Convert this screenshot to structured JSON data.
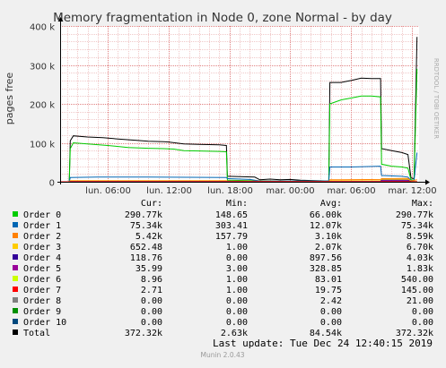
{
  "chart_data": {
    "type": "line",
    "title": "Memory fragmentation in Node 0, zone Normal - by day",
    "ylabel": "pages free",
    "watermark": "RRDTOOL / TOBI OETIKER",
    "ylim": [
      0,
      400000
    ],
    "y_ticks": [
      {
        "value": 0,
        "label": "0"
      },
      {
        "value": 100000,
        "label": "100 k"
      },
      {
        "value": 200000,
        "label": "200 k"
      },
      {
        "value": 300000,
        "label": "300 k"
      },
      {
        "value": 400000,
        "label": "400 k"
      }
    ],
    "x_ticks": [
      {
        "t": 6,
        "label": "lun. 06:00"
      },
      {
        "t": 12,
        "label": "lun. 12:00"
      },
      {
        "t": 18,
        "label": "lun. 18:00"
      },
      {
        "t": 24,
        "label": "mar. 00:00"
      },
      {
        "t": 30,
        "label": "mar. 06:00"
      },
      {
        "t": 36,
        "label": "mar. 12:00"
      }
    ],
    "xlim": [
      1.3,
      36.7
    ],
    "columns": [
      "",
      "Cur:",
      "Min:",
      "Avg:",
      "Max:"
    ],
    "legend": [
      {
        "name": "Order 0",
        "color": "#00cc00",
        "cur": "290.77k",
        "min": "148.65",
        "avg": "66.00k",
        "max": "290.77k"
      },
      {
        "name": "Order 1",
        "color": "#0066b3",
        "cur": "75.34k",
        "min": "303.41",
        "avg": "12.07k",
        "max": "75.34k"
      },
      {
        "name": "Order 2",
        "color": "#ff8000",
        "cur": "5.42k",
        "min": "157.79",
        "avg": "3.10k",
        "max": "8.59k"
      },
      {
        "name": "Order 3",
        "color": "#ffcc00",
        "cur": "652.48",
        "min": "1.00",
        "avg": "2.07k",
        "max": "6.70k"
      },
      {
        "name": "Order 4",
        "color": "#330099",
        "cur": "118.76",
        "min": "0.00",
        "avg": "897.56",
        "max": "4.03k"
      },
      {
        "name": "Order 5",
        "color": "#990099",
        "cur": "35.99",
        "min": "3.00",
        "avg": "328.85",
        "max": "1.83k"
      },
      {
        "name": "Order 6",
        "color": "#ccff00",
        "cur": "8.96",
        "min": "1.00",
        "avg": "83.01",
        "max": "540.00"
      },
      {
        "name": "Order 7",
        "color": "#ff0000",
        "cur": "2.71",
        "min": "1.00",
        "avg": "19.75",
        "max": "145.00"
      },
      {
        "name": "Order 8",
        "color": "#808080",
        "cur": "0.00",
        "min": "0.00",
        "avg": "2.42",
        "max": "21.00"
      },
      {
        "name": "Order 9",
        "color": "#008f00",
        "cur": "0.00",
        "min": "0.00",
        "avg": "0.00",
        "max": "0.00"
      },
      {
        "name": "Order 10",
        "color": "#00487d",
        "cur": "0.00",
        "min": "0.00",
        "avg": "0.00",
        "max": "0.00"
      },
      {
        "name": "Total",
        "color": "#000000",
        "cur": "372.32k",
        "min": "2.63k",
        "avg": "84.54k",
        "max": "372.32k"
      }
    ],
    "series": [
      {
        "name": "Total",
        "color": "#000000",
        "points": [
          [
            1.3,
            0
          ],
          [
            2.2,
            0
          ],
          [
            2.3,
            105000
          ],
          [
            2.6,
            118000
          ],
          [
            4.0,
            115000
          ],
          [
            5.5,
            113000
          ],
          [
            7.0,
            110000
          ],
          [
            9.0,
            106000
          ],
          [
            10.0,
            104000
          ],
          [
            11.5,
            103000
          ],
          [
            12.0,
            102000
          ],
          [
            13.5,
            97000
          ],
          [
            15.0,
            96000
          ],
          [
            17.0,
            95000
          ],
          [
            17.7,
            93000
          ],
          [
            17.8,
            14000
          ],
          [
            19.0,
            13000
          ],
          [
            20.5,
            12000
          ],
          [
            21.0,
            5000
          ],
          [
            22.0,
            7000
          ],
          [
            23.0,
            5000
          ],
          [
            24.0,
            6000
          ],
          [
            25.0,
            4000
          ],
          [
            26.5,
            3000
          ],
          [
            27.8,
            2000
          ],
          [
            27.9,
            255000
          ],
          [
            29.0,
            255000
          ],
          [
            30.0,
            260000
          ],
          [
            31.0,
            266000
          ],
          [
            32.0,
            265000
          ],
          [
            32.9,
            265000
          ],
          [
            33.0,
            85000
          ],
          [
            34.0,
            80000
          ],
          [
            35.0,
            75000
          ],
          [
            35.6,
            70000
          ],
          [
            35.9,
            10000
          ],
          [
            36.2,
            8000
          ],
          [
            36.5,
            372000
          ]
        ]
      },
      {
        "name": "Order 0",
        "color": "#00cc00",
        "points": [
          [
            1.3,
            0
          ],
          [
            2.2,
            0
          ],
          [
            2.3,
            85000
          ],
          [
            2.6,
            100000
          ],
          [
            4.0,
            97000
          ],
          [
            6.0,
            93000
          ],
          [
            8.0,
            88000
          ],
          [
            10.0,
            86000
          ],
          [
            11.5,
            85000
          ],
          [
            12.5,
            84000
          ],
          [
            13.5,
            80000
          ],
          [
            15.0,
            79000
          ],
          [
            17.0,
            78000
          ],
          [
            17.7,
            77000
          ],
          [
            17.8,
            4000
          ],
          [
            20.0,
            3000
          ],
          [
            21.0,
            2500
          ],
          [
            24.0,
            2000
          ],
          [
            27.8,
            2000
          ],
          [
            27.9,
            200000
          ],
          [
            29.0,
            210000
          ],
          [
            30.0,
            215000
          ],
          [
            31.0,
            220000
          ],
          [
            32.0,
            220000
          ],
          [
            32.9,
            218000
          ],
          [
            33.0,
            45000
          ],
          [
            34.0,
            40000
          ],
          [
            35.0,
            38000
          ],
          [
            35.6,
            35000
          ],
          [
            35.9,
            5000
          ],
          [
            36.2,
            4000
          ],
          [
            36.5,
            290000
          ]
        ]
      },
      {
        "name": "Order 1",
        "color": "#0066b3",
        "points": [
          [
            1.3,
            0
          ],
          [
            2.2,
            0
          ],
          [
            2.3,
            11000
          ],
          [
            5.0,
            12000
          ],
          [
            10.0,
            12000
          ],
          [
            17.7,
            11000
          ],
          [
            17.8,
            8000
          ],
          [
            20.0,
            6000
          ],
          [
            21.0,
            2000
          ],
          [
            27.8,
            2000
          ],
          [
            27.9,
            38000
          ],
          [
            30.0,
            38000
          ],
          [
            32.9,
            40000
          ],
          [
            33.0,
            16000
          ],
          [
            35.0,
            14000
          ],
          [
            35.6,
            12000
          ],
          [
            35.9,
            3000
          ],
          [
            36.2,
            3000
          ],
          [
            36.5,
            75000
          ]
        ]
      },
      {
        "name": "Order 2",
        "color": "#ff8000",
        "points": [
          [
            1.3,
            0
          ],
          [
            2.2,
            0
          ],
          [
            2.3,
            3000
          ],
          [
            17.7,
            3000
          ],
          [
            17.8,
            1500
          ],
          [
            27.8,
            1000
          ],
          [
            27.9,
            5000
          ],
          [
            32.9,
            6000
          ],
          [
            33.0,
            8000
          ],
          [
            35.6,
            8500
          ],
          [
            35.9,
            2000
          ],
          [
            36.5,
            5400
          ]
        ]
      },
      {
        "name": "Order 3",
        "color": "#ffcc00",
        "points": [
          [
            1.3,
            0
          ],
          [
            2.2,
            0
          ],
          [
            2.3,
            2000
          ],
          [
            17.7,
            2000
          ],
          [
            17.8,
            1000
          ],
          [
            27.8,
            900
          ],
          [
            27.9,
            2500
          ],
          [
            32.9,
            2500
          ],
          [
            33.0,
            6000
          ],
          [
            35.6,
            6500
          ],
          [
            35.9,
            700
          ],
          [
            36.5,
            650
          ]
        ]
      },
      {
        "name": "Order 4",
        "color": "#330099",
        "points": [
          [
            1.3,
            0
          ],
          [
            2.2,
            0
          ],
          [
            2.3,
            600
          ],
          [
            32.9,
            800
          ],
          [
            33.0,
            4000
          ],
          [
            35.6,
            3800
          ],
          [
            35.9,
            200
          ],
          [
            36.5,
            120
          ]
        ]
      },
      {
        "name": "Order 5",
        "color": "#990099",
        "points": [
          [
            1.3,
            0
          ],
          [
            2.2,
            0
          ],
          [
            2.3,
            200
          ],
          [
            32.9,
            300
          ],
          [
            33.0,
            1800
          ],
          [
            35.6,
            1700
          ],
          [
            35.9,
            50
          ],
          [
            36.5,
            36
          ]
        ]
      },
      {
        "name": "Order 7",
        "color": "#ff0000",
        "points": [
          [
            1.3,
            0
          ],
          [
            33.0,
            0
          ],
          [
            33.1,
            140
          ],
          [
            35.6,
            140
          ],
          [
            35.9,
            3
          ],
          [
            36.5,
            3
          ]
        ]
      }
    ]
  },
  "footer": {
    "last_update": "Last update: Tue Dec 24 12:40:15 2019",
    "version": "Munin 2.0.43"
  }
}
